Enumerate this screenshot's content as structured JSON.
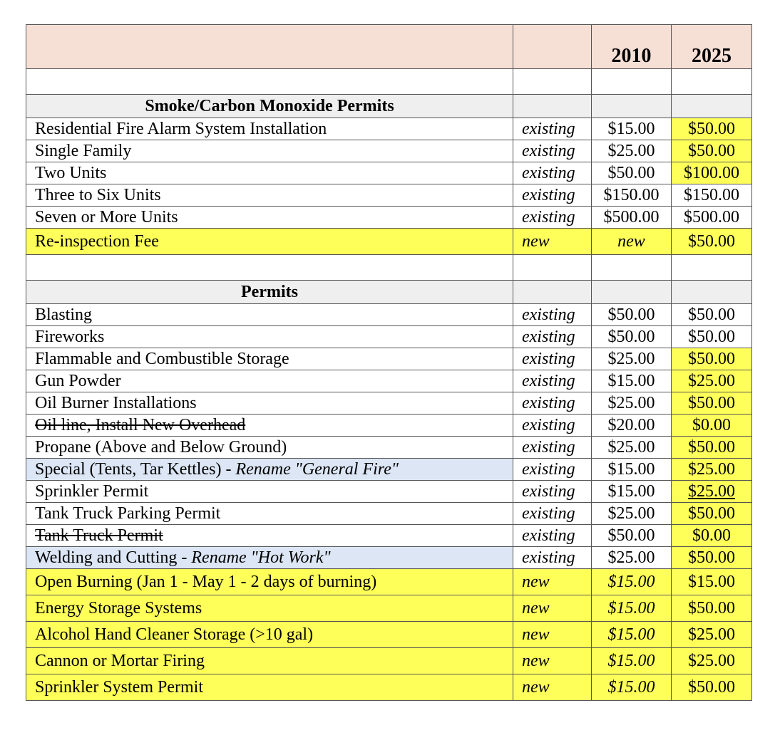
{
  "header": {
    "col_2010": "2010",
    "col_2025": "2025"
  },
  "sections": [
    {
      "title": "Smoke/Carbon Monoxide Permits",
      "rows": [
        {
          "label": "Residential Fire Alarm System Installation",
          "status": "existing",
          "v2010": "$15.00",
          "v2025": "$50.00",
          "hl": "c4"
        },
        {
          "label": "Single Family",
          "status": "existing",
          "v2010": "$25.00",
          "v2025": "$50.00",
          "hl": "c4"
        },
        {
          "label": "Two Units",
          "status": "existing",
          "v2010": "$50.00",
          "v2025": "$100.00",
          "hl": "c4"
        },
        {
          "label": "Three to Six Units",
          "status": "existing",
          "v2010": "$150.00",
          "v2025": "$150.00",
          "hl": ""
        },
        {
          "label": "Seven or More Units",
          "status": "existing",
          "v2010": "$500.00",
          "v2025": "$500.00",
          "hl": ""
        },
        {
          "label": "Re-inspection Fee",
          "status": "new",
          "v2010": "new",
          "v2025": "$50.00",
          "hl": "all",
          "tall": true,
          "it2010": true
        }
      ]
    },
    {
      "title": "Permits",
      "rows": [
        {
          "label": "Blasting",
          "status": "existing",
          "v2010": "$50.00",
          "v2025": "$50.00",
          "hl": ""
        },
        {
          "label": "Fireworks",
          "status": "existing",
          "v2010": "$50.00",
          "v2025": "$50.00",
          "hl": ""
        },
        {
          "label": "Flammable and Combustible Storage",
          "status": "existing",
          "v2010": "$25.00",
          "v2025": "$50.00",
          "hl": "c4"
        },
        {
          "label": "Gun Powder",
          "status": "existing",
          "v2010": "$15.00",
          "v2025": "$25.00",
          "hl": "c4"
        },
        {
          "label": "Oil Burner Installations",
          "status": "existing",
          "v2010": "$25.00",
          "v2025": "$50.00",
          "hl": "c4"
        },
        {
          "label": "Oil line, Install New Overhead",
          "status": "existing",
          "v2010": "$20.00",
          "v2025": "$0.00",
          "hl": "c4",
          "strike": true
        },
        {
          "label": "Propane (Above and Below Ground)",
          "status": "existing",
          "v2010": "$25.00",
          "v2025": "$50.00",
          "hl": "c4"
        },
        {
          "label": "Special (Tents, Tar Kettles) - ",
          "note": "Rename \"General Fire\"",
          "status": "existing",
          "v2010": "$15.00",
          "v2025": "$25.00",
          "hl": "c4",
          "blue": true
        },
        {
          "label": "Sprinkler Permit",
          "status": "existing",
          "v2010": "$15.00",
          "v2025": "$25.00",
          "hl": "c4",
          "ul": true
        },
        {
          "label": "Tank Truck Parking Permit",
          "status": "existing",
          "v2010": "$25.00",
          "v2025": "$50.00",
          "hl": "c4"
        },
        {
          "label": "Tank Truck Permit",
          "status": "existing",
          "v2010": "$50.00",
          "v2025": "$0.00",
          "hl": "c4",
          "strike": true
        },
        {
          "label": "Welding and Cutting - ",
          "note": "Rename \"Hot Work\"",
          "status": "existing",
          "v2010": "$25.00",
          "v2025": "$50.00",
          "hl": "c4",
          "blue": true
        },
        {
          "label": "Open Burning (Jan 1 - May 1 - 2 days of burning)",
          "status": "new",
          "v2010": "$15.00",
          "v2025": "$15.00",
          "hl": "all",
          "tall": true,
          "it2010": true
        },
        {
          "label": "Energy Storage Systems",
          "status": "new",
          "v2010": "$15.00",
          "v2025": "$50.00",
          "hl": "all",
          "tall": true,
          "it2010": true
        },
        {
          "label": "Alcohol Hand Cleaner Storage (>10 gal)",
          "status": "new",
          "v2010": "$15.00",
          "v2025": "$25.00",
          "hl": "all",
          "tall": true,
          "it2010": true
        },
        {
          "label": "Cannon or Mortar Firing",
          "status": "new",
          "v2010": "$15.00",
          "v2025": "$25.00",
          "hl": "all",
          "tall": true,
          "it2010": true
        },
        {
          "label": "Sprinkler System Permit",
          "status": "new",
          "v2010": "$15.00",
          "v2025": "$50.00",
          "hl": "all",
          "tall": true,
          "it2010": true
        }
      ]
    }
  ]
}
